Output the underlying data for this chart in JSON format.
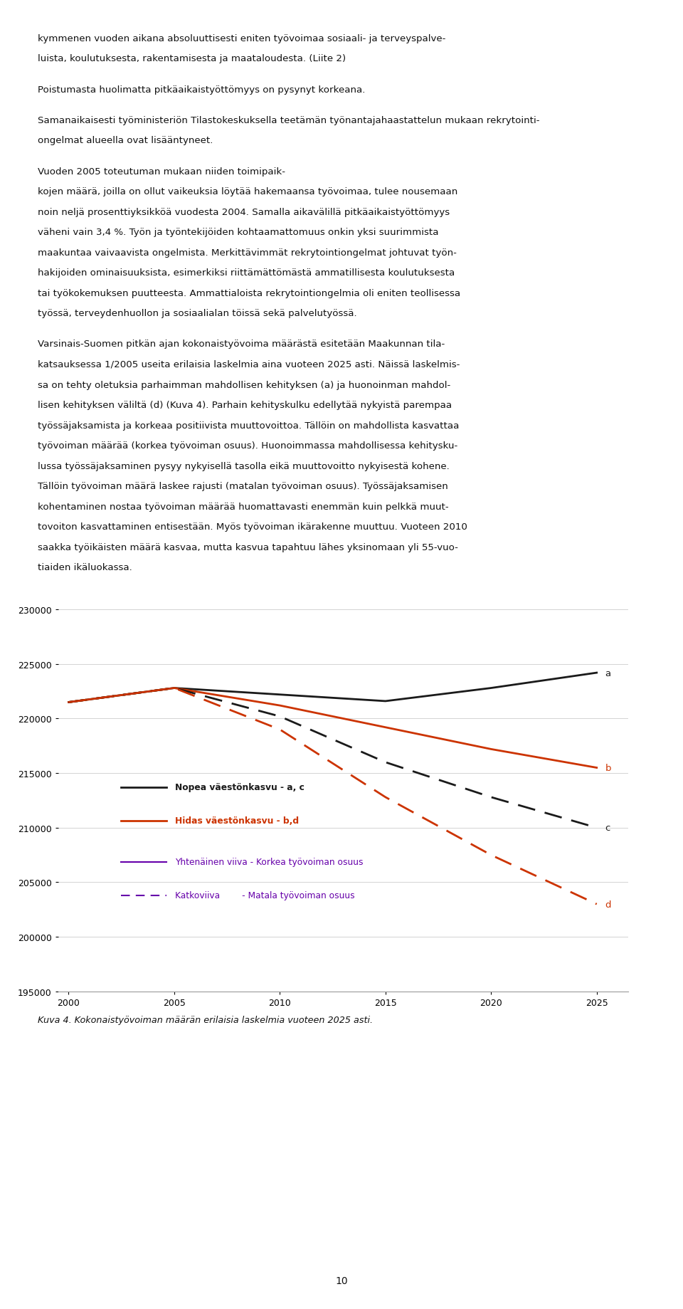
{
  "years": [
    2000,
    2005,
    2010,
    2015,
    2020,
    2025
  ],
  "line_a": [
    221500,
    222800,
    222200,
    221600,
    222800,
    224200
  ],
  "line_b": [
    221500,
    222800,
    221200,
    219200,
    217200,
    215500
  ],
  "line_c": [
    221500,
    222800,
    220200,
    216000,
    212800,
    210000
  ],
  "line_d": [
    221500,
    222800,
    219000,
    212800,
    207500,
    203000
  ],
  "color_black": "#1a1a1a",
  "color_red": "#cc3300",
  "color_purple": "#6600aa",
  "ylim_min": 195000,
  "ylim_max": 231000,
  "yticks": [
    195000,
    200000,
    205000,
    210000,
    215000,
    220000,
    225000,
    230000
  ],
  "xticks": [
    2000,
    2005,
    2010,
    2015,
    2020,
    2025
  ],
  "legend_label1": "Nopea väestönkasvu - a, c",
  "legend_label2": "Hidas väestönkasvu - b,d",
  "legend_label3": "Yhtenäinen viiva - Korkea työvoiman osuus",
  "legend_label4": "Katkoviiva        - Matala työvoiman osuus",
  "label_a": "a",
  "label_b": "b",
  "label_c": "c",
  "label_d": "d",
  "caption": "Kuva 4. Kokonaistyövoiman määrän erilaisia laskelmia vuoteen 2025 asti.",
  "background_color": "#ffffff",
  "grid_color": "#cccccc",
  "page_number": "10",
  "text_lines": [
    "kymmenen vuoden aikana absoluuttisesti eniten työvoimaa sosiaali- ja terveyspalve-",
    "luista, koulutuksesta, rakentamisesta ja maataloudesta. (Liite 2)",
    "",
    "Poistumasta huolimatta pitkäaikaistyöttömyys on pysynyt korkeana.",
    "",
    "Samanaikaisesti työministeriön Tilastokeskuksella teetämän työnantajahaastattelun mukaan rekrytointi-",
    "ongelmat alueella ovat lisääntyneet.",
    "",
    "Vuoden 2005 toteutuman mukaan niiden toimipaik-",
    "kojen määrä, joilla on ollut vaikeuksia löytää hakemaansa työvoimaa, tulee nousemaan",
    "noin neljä prosenttiyksikköä vuodesta 2004. Samalla aikavälillä pitkäaikaistyöttömyys",
    "väheni vain 3,4 %. Työn ja työntekijöiden kohtaamattomuus onkin yksi suurimmista",
    "maakuntaa vaivaavista ongelmista. Merkittävimmät rekrytointiongelmat johtuvat työn-",
    "hakijoiden ominaisuuksista, esimerkiksi riittämättömästä ammatillisesta koulutuksesta",
    "tai työkokemuksen puutteesta. Ammattialoista rekrytointiongelmia oli eniten teollisessa",
    "työssä, terveydenhuollon ja sosiaalialan töissä sekä palvelutyössä.",
    "",
    "Varsinais-Suomen pitkän ajan kokonaistyövoima määrästä esitetään Maakunnan tila-",
    "katsauksessa 1/2005 useita erilaisia laskelmia aina vuoteen 2025 asti. Näissä laskelmis-",
    "sa on tehty oletuksia parhaimman mahdollisen kehityksen (a) ja huonoinman mahdol-",
    "lisen kehityksen väliltä (d) (Kuva 4). Parhain kehityskulku edellytää nykyistä parempaa",
    "työssäjaksamista ja korkeaa positiivista muuttovoittoa. Tällöin on mahdollista kasvattaa",
    "työvoiman määrää (korkea työvoiman osuus). Huonoimmassa mahdollisessa kehitysku-",
    "lussa työssäjaksaminen pysyy nykyisellä tasolla eikä muuttovoitto nykyisestä kohene.",
    "Tällöin työvoiman määrä laskee rajusti (matalan työvoiman osuus). Työssäjaksamisen",
    "kohentaminen nostaa työvoiman määrää huomattavasti enemmän kuin pelkkä muut-",
    "tovoiton kasvattaminen entisestään. Myös työvoiman ikärakenne muuttuu. Vuoteen 2010",
    "saakka työikäisten määrä kasvaa, mutta kasvua tapahtuu lähes yksinomaan yli 55-vuo-",
    "tiaiden ikäluokassa."
  ]
}
